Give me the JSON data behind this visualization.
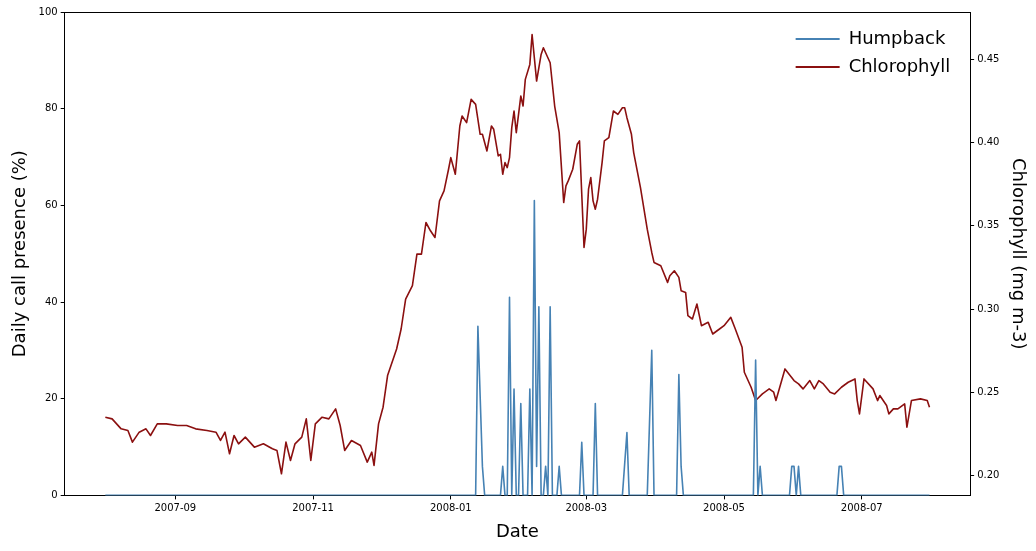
{
  "chart_data": {
    "type": "line",
    "xlabel": "Date",
    "ylabel": "Daily call presence (%)",
    "y2label": "Chlorophyll (mg m-3)",
    "xlim": [
      "2007-07-14",
      "2008-08-18"
    ],
    "xticks": [
      "2007-09",
      "2007-11",
      "2008-01",
      "2008-03",
      "2008-05",
      "2008-07"
    ],
    "ylim": [
      0,
      100
    ],
    "yticks": [
      0,
      20,
      40,
      60,
      80,
      100
    ],
    "y2lim": [
      0.188,
      0.4785
    ],
    "y2ticks": [
      {
        "value": 0.2,
        "label": "0.20"
      },
      {
        "value": 0.25,
        "label": "0.25"
      },
      {
        "value": 0.3,
        "label": "0.30"
      },
      {
        "value": 0.35,
        "label": "0.35"
      },
      {
        "value": 0.4,
        "label": "0.40"
      },
      {
        "value": 0.45,
        "label": "0.45"
      }
    ],
    "grid": false,
    "legend": "top right",
    "series": [
      {
        "name": "Humpback",
        "color": "#4682b4",
        "x": [
          "2007-08-01",
          "2008-01-12",
          "2008-01-13",
          "2008-01-15",
          "2008-01-16",
          "2008-01-23",
          "2008-01-24",
          "2008-01-25",
          "2008-01-26",
          "2008-01-27",
          "2008-01-28",
          "2008-01-29",
          "2008-01-30",
          "2008-01-31",
          "2008-02-01",
          "2008-02-02",
          "2008-02-04",
          "2008-02-05",
          "2008-02-06",
          "2008-02-07",
          "2008-02-08",
          "2008-02-09",
          "2008-02-10",
          "2008-02-11",
          "2008-02-12",
          "2008-02-13",
          "2008-02-14",
          "2008-02-15",
          "2008-02-17",
          "2008-02-18",
          "2008-02-19",
          "2008-02-27",
          "2008-02-28",
          "2008-02-29",
          "2008-03-04",
          "2008-03-05",
          "2008-03-06",
          "2008-03-17",
          "2008-03-19",
          "2008-03-20",
          "2008-03-28",
          "2008-03-30",
          "2008-03-31",
          "2008-04-10",
          "2008-04-11",
          "2008-04-12",
          "2008-04-13",
          "2008-05-14",
          "2008-05-15",
          "2008-05-16",
          "2008-05-17",
          "2008-05-18",
          "2008-05-30",
          "2008-05-31",
          "2008-06-01",
          "2008-06-02",
          "2008-06-03",
          "2008-06-04",
          "2008-06-20",
          "2008-06-21",
          "2008-06-22",
          "2008-06-23",
          "2008-07-31"
        ],
        "values": [
          0,
          0,
          35,
          6,
          0,
          0,
          6,
          0,
          0,
          41,
          0,
          22,
          0,
          0,
          19,
          0,
          0,
          22,
          0,
          61,
          6,
          39,
          0,
          0,
          6,
          0,
          39,
          0,
          0,
          6,
          0,
          0,
          11,
          0,
          0,
          19,
          0,
          0,
          13,
          0,
          0,
          30,
          0,
          0,
          25,
          6,
          0,
          0,
          28,
          0,
          6,
          0,
          0,
          6,
          6,
          0,
          6,
          0,
          0,
          6,
          6,
          0,
          0
        ]
      },
      {
        "name": "Chlorophyll",
        "color": "#8b1010",
        "axis": "y2",
        "x": [
          "2007-08-01",
          "2007-08-04",
          "2007-08-08",
          "2007-08-11",
          "2007-08-13",
          "2007-08-16",
          "2007-08-19",
          "2007-08-21",
          "2007-08-24",
          "2007-08-28",
          "2007-09-02",
          "2007-09-06",
          "2007-09-10",
          "2007-09-15",
          "2007-09-19",
          "2007-09-21",
          "2007-09-23",
          "2007-09-25",
          "2007-09-27",
          "2007-09-29",
          "2007-10-02",
          "2007-10-06",
          "2007-10-10",
          "2007-10-14",
          "2007-10-16",
          "2007-10-18",
          "2007-10-20",
          "2007-10-22",
          "2007-10-24",
          "2007-10-27",
          "2007-10-29",
          "2007-10-31",
          "2007-11-02",
          "2007-11-05",
          "2007-11-08",
          "2007-11-11",
          "2007-11-13",
          "2007-11-15",
          "2007-11-18",
          "2007-11-22",
          "2007-11-25",
          "2007-11-27",
          "2007-11-28",
          "2007-11-30",
          "2007-12-02",
          "2007-12-04",
          "2007-12-08",
          "2007-12-10",
          "2007-12-12",
          "2007-12-15",
          "2007-12-17",
          "2007-12-19",
          "2007-12-21",
          "2007-12-23",
          "2007-12-25",
          "2007-12-27",
          "2007-12-29",
          "2007-12-31",
          "2008-01-01",
          "2008-01-03",
          "2008-01-05",
          "2008-01-06",
          "2008-01-08",
          "2008-01-10",
          "2008-01-12",
          "2008-01-14",
          "2008-01-15",
          "2008-01-17",
          "2008-01-19",
          "2008-01-20",
          "2008-01-22",
          "2008-01-23",
          "2008-01-24",
          "2008-01-25",
          "2008-01-26",
          "2008-01-27",
          "2008-01-28",
          "2008-01-29",
          "2008-01-30",
          "2008-02-01",
          "2008-02-02",
          "2008-02-03",
          "2008-02-05",
          "2008-02-06",
          "2008-02-08",
          "2008-02-10",
          "2008-02-11",
          "2008-02-14",
          "2008-02-16",
          "2008-02-18",
          "2008-02-20",
          "2008-02-21",
          "2008-02-22",
          "2008-02-24",
          "2008-02-26",
          "2008-02-27",
          "2008-02-29",
          "2008-03-01",
          "2008-03-02",
          "2008-03-03",
          "2008-03-04",
          "2008-03-05",
          "2008-03-06",
          "2008-03-08",
          "2008-03-09",
          "2008-03-11",
          "2008-03-13",
          "2008-03-15",
          "2008-03-17",
          "2008-03-18",
          "2008-03-19",
          "2008-03-21",
          "2008-03-22",
          "2008-03-25",
          "2008-03-28",
          "2008-03-30",
          "2008-03-31",
          "2008-04-03",
          "2008-04-06",
          "2008-04-07",
          "2008-04-09",
          "2008-04-11",
          "2008-04-12",
          "2008-04-14",
          "2008-04-15",
          "2008-04-17",
          "2008-04-19",
          "2008-04-21",
          "2008-04-24",
          "2008-04-26",
          "2008-04-29",
          "2008-05-01",
          "2008-05-04",
          "2008-05-06",
          "2008-05-09",
          "2008-05-10",
          "2008-05-13",
          "2008-05-15",
          "2008-05-18",
          "2008-05-21",
          "2008-05-23",
          "2008-05-24",
          "2008-05-28",
          "2008-06-01",
          "2008-06-03",
          "2008-06-05",
          "2008-06-08",
          "2008-06-10",
          "2008-06-12",
          "2008-06-14",
          "2008-06-17",
          "2008-06-19",
          "2008-06-22",
          "2008-06-25",
          "2008-06-28",
          "2008-06-29",
          "2008-06-30",
          "2008-07-02",
          "2008-07-06",
          "2008-07-08",
          "2008-07-09",
          "2008-07-12",
          "2008-07-13",
          "2008-07-15",
          "2008-07-17",
          "2008-07-20",
          "2008-07-21",
          "2008-07-23",
          "2008-07-27",
          "2008-07-30",
          "2008-07-31"
        ],
        "values": [
          0.235,
          0.234,
          0.228,
          0.227,
          0.22,
          0.226,
          0.228,
          0.224,
          0.231,
          0.231,
          0.23,
          0.23,
          0.228,
          0.227,
          0.226,
          0.221,
          0.226,
          0.213,
          0.224,
          0.219,
          0.223,
          0.217,
          0.219,
          0.216,
          0.215,
          0.201,
          0.22,
          0.209,
          0.219,
          0.223,
          0.234,
          0.209,
          0.231,
          0.235,
          0.234,
          0.24,
          0.23,
          0.215,
          0.221,
          0.218,
          0.208,
          0.214,
          0.206,
          0.231,
          0.241,
          0.26,
          0.276,
          0.288,
          0.306,
          0.314,
          0.333,
          0.333,
          0.352,
          0.347,
          0.343,
          0.365,
          0.371,
          0.384,
          0.391,
          0.381,
          0.41,
          0.416,
          0.412,
          0.426,
          0.423,
          0.405,
          0.405,
          0.395,
          0.41,
          0.408,
          0.392,
          0.393,
          0.381,
          0.388,
          0.385,
          0.391,
          0.409,
          0.419,
          0.406,
          0.428,
          0.422,
          0.438,
          0.447,
          0.465,
          0.437,
          0.453,
          0.457,
          0.448,
          0.422,
          0.406,
          0.364,
          0.374,
          0.377,
          0.384,
          0.399,
          0.401,
          0.337,
          0.348,
          0.372,
          0.379,
          0.365,
          0.36,
          0.366,
          0.388,
          0.401,
          0.403,
          0.419,
          0.417,
          0.421,
          0.421,
          0.415,
          0.405,
          0.394,
          0.373,
          0.348,
          0.334,
          0.328,
          0.326,
          0.316,
          0.32,
          0.323,
          0.319,
          0.311,
          0.31,
          0.296,
          0.294,
          0.303,
          0.29,
          0.292,
          0.285,
          0.288,
          0.29,
          0.295,
          0.288,
          0.277,
          0.262,
          0.253,
          0.245,
          0.249,
          0.252,
          0.25,
          0.245,
          0.264,
          0.257,
          0.255,
          0.252,
          0.257,
          0.252,
          0.257,
          0.255,
          0.25,
          0.249,
          0.253,
          0.256,
          0.258,
          0.245,
          0.237,
          0.258,
          0.252,
          0.245,
          0.248,
          0.242,
          0.237,
          0.24,
          0.24,
          0.243,
          0.229,
          0.245,
          0.246,
          0.245,
          0.241
        ]
      }
    ]
  }
}
